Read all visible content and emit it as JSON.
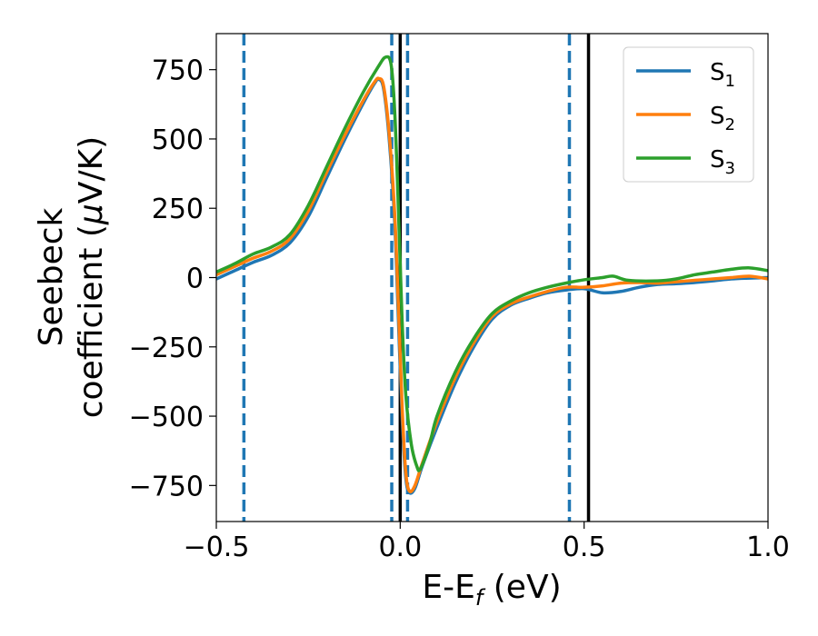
{
  "chart_data": {
    "type": "line",
    "xlabel": {
      "main": "E-E",
      "sub": "f",
      "unit": " (eV)"
    },
    "ylabel": {
      "line1": "Seebeck",
      "line2": "coefficient  (",
      "mu": "μ",
      "line2_end": "V/K)"
    },
    "xlim": [
      -0.5,
      1.0
    ],
    "ylim": [
      -880,
      880
    ],
    "xticks": [
      -0.5,
      0.0,
      0.5,
      1.0
    ],
    "xtick_labels": [
      "−0.5",
      "0.0",
      "0.5",
      "1.0"
    ],
    "yticks": [
      -750,
      -500,
      -250,
      0,
      250,
      500,
      750
    ],
    "ytick_labels": [
      "−750",
      "−500",
      "−250",
      "0",
      "250",
      "500",
      "750"
    ],
    "grid": false,
    "legend_position": "top-right",
    "vlines_dashed": {
      "x": [
        -0.425,
        -0.023,
        0.02,
        0.46
      ],
      "color": "#1f77b4"
    },
    "vlines_solid": {
      "x": [
        0.0,
        0.512
      ],
      "color": "#000000"
    },
    "series": [
      {
        "name": "S",
        "sub": "1",
        "color": "#1f77b4",
        "points": [
          [
            -0.5,
            -5
          ],
          [
            -0.45,
            25
          ],
          [
            -0.4,
            55
          ],
          [
            -0.35,
            80
          ],
          [
            -0.3,
            125
          ],
          [
            -0.25,
            220
          ],
          [
            -0.2,
            360
          ],
          [
            -0.15,
            500
          ],
          [
            -0.1,
            630
          ],
          [
            -0.07,
            700
          ],
          [
            -0.058,
            715
          ],
          [
            -0.045,
            680
          ],
          [
            -0.03,
            500
          ],
          [
            -0.015,
            200
          ],
          [
            -0.005,
            -150
          ],
          [
            0.005,
            -500
          ],
          [
            0.015,
            -720
          ],
          [
            0.025,
            -775
          ],
          [
            0.04,
            -760
          ],
          [
            0.06,
            -680
          ],
          [
            0.1,
            -540
          ],
          [
            0.15,
            -380
          ],
          [
            0.2,
            -250
          ],
          [
            0.25,
            -150
          ],
          [
            0.3,
            -100
          ],
          [
            0.35,
            -75
          ],
          [
            0.4,
            -55
          ],
          [
            0.45,
            -45
          ],
          [
            0.5,
            -40
          ],
          [
            0.55,
            -55
          ],
          [
            0.6,
            -50
          ],
          [
            0.65,
            -35
          ],
          [
            0.7,
            -25
          ],
          [
            0.75,
            -22
          ],
          [
            0.8,
            -18
          ],
          [
            0.85,
            -12
          ],
          [
            0.9,
            -5
          ],
          [
            0.95,
            -2
          ],
          [
            1.0,
            0
          ]
        ]
      },
      {
        "name": "S",
        "sub": "2",
        "color": "#ff7f0e",
        "points": [
          [
            -0.5,
            10
          ],
          [
            -0.45,
            40
          ],
          [
            -0.4,
            70
          ],
          [
            -0.35,
            95
          ],
          [
            -0.3,
            140
          ],
          [
            -0.25,
            240
          ],
          [
            -0.2,
            380
          ],
          [
            -0.15,
            515
          ],
          [
            -0.1,
            640
          ],
          [
            -0.07,
            705
          ],
          [
            -0.058,
            718
          ],
          [
            -0.045,
            690
          ],
          [
            -0.03,
            520
          ],
          [
            -0.015,
            230
          ],
          [
            -0.005,
            -100
          ],
          [
            0.005,
            -460
          ],
          [
            0.015,
            -700
          ],
          [
            0.025,
            -770
          ],
          [
            0.04,
            -750
          ],
          [
            0.06,
            -670
          ],
          [
            0.1,
            -520
          ],
          [
            0.15,
            -360
          ],
          [
            0.2,
            -235
          ],
          [
            0.25,
            -140
          ],
          [
            0.3,
            -95
          ],
          [
            0.35,
            -70
          ],
          [
            0.4,
            -50
          ],
          [
            0.45,
            -35
          ],
          [
            0.5,
            -35
          ],
          [
            0.55,
            -30
          ],
          [
            0.6,
            -20
          ],
          [
            0.65,
            -18
          ],
          [
            0.7,
            -20
          ],
          [
            0.75,
            -15
          ],
          [
            0.8,
            -10
          ],
          [
            0.85,
            -5
          ],
          [
            0.9,
            0
          ],
          [
            0.95,
            5
          ],
          [
            1.0,
            -5
          ]
        ]
      },
      {
        "name": "S",
        "sub": "3",
        "color": "#2ca02c",
        "points": [
          [
            -0.5,
            20
          ],
          [
            -0.45,
            50
          ],
          [
            -0.4,
            85
          ],
          [
            -0.35,
            110
          ],
          [
            -0.3,
            155
          ],
          [
            -0.25,
            260
          ],
          [
            -0.2,
            400
          ],
          [
            -0.15,
            540
          ],
          [
            -0.1,
            670
          ],
          [
            -0.06,
            760
          ],
          [
            -0.04,
            795
          ],
          [
            -0.025,
            770
          ],
          [
            -0.015,
            600
          ],
          [
            -0.005,
            250
          ],
          [
            0.005,
            -150
          ],
          [
            0.015,
            -420
          ],
          [
            0.03,
            -600
          ],
          [
            0.045,
            -680
          ],
          [
            0.055,
            -690
          ],
          [
            0.08,
            -600
          ],
          [
            0.1,
            -500
          ],
          [
            0.15,
            -340
          ],
          [
            0.2,
            -220
          ],
          [
            0.25,
            -130
          ],
          [
            0.3,
            -85
          ],
          [
            0.35,
            -55
          ],
          [
            0.4,
            -35
          ],
          [
            0.45,
            -20
          ],
          [
            0.5,
            -8
          ],
          [
            0.55,
            0
          ],
          [
            0.58,
            5
          ],
          [
            0.62,
            -10
          ],
          [
            0.7,
            -12
          ],
          [
            0.75,
            -5
          ],
          [
            0.8,
            10
          ],
          [
            0.85,
            20
          ],
          [
            0.9,
            30
          ],
          [
            0.95,
            35
          ],
          [
            1.0,
            25
          ]
        ]
      }
    ]
  }
}
